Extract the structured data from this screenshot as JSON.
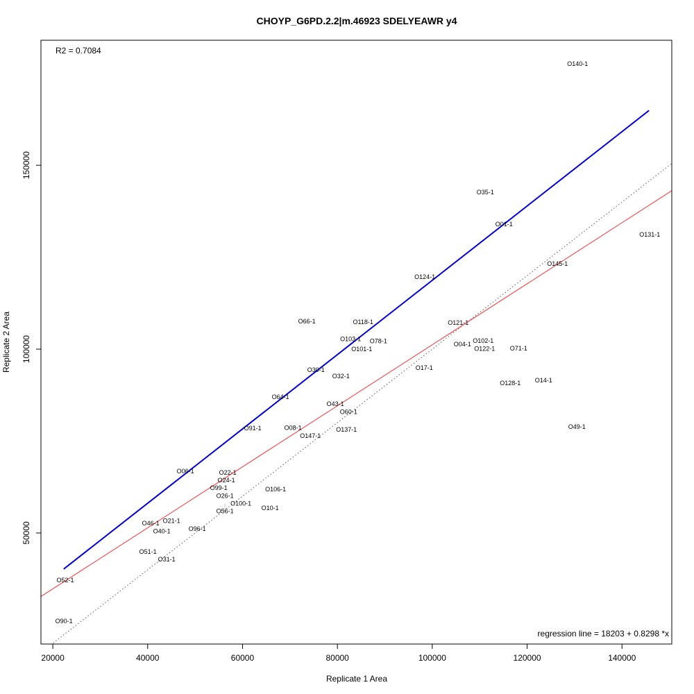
{
  "chart_data": {
    "type": "scatter",
    "title": "CHOYP_G6PD.2.2|m.46923 SDELYEAWR y4",
    "xlabel": "Replicate 1 Area",
    "ylabel": "Replicate 2 Area",
    "xlim": [
      17500,
      150500
    ],
    "ylim": [
      19800,
      184000
    ],
    "xticks": [
      20000,
      40000,
      60000,
      80000,
      100000,
      120000,
      140000
    ],
    "yticks": [
      50000,
      100000,
      150000
    ],
    "xtick_labels": [
      "20000",
      "40000",
      "60000",
      "80000",
      "100000",
      "120000",
      "140000"
    ],
    "ytick_labels": [
      "50000",
      "100000",
      "150000"
    ],
    "grid": false,
    "r2_label": "R2 = 0.7084",
    "regression_label": "regression line = 18203 + 0.8298 *x",
    "regression": {
      "intercept": 18203,
      "slope": 0.8298,
      "color": "#e85555"
    },
    "identity_line": {
      "intercept": 0,
      "slope": 1,
      "color": "#555555",
      "style": "dotted"
    },
    "blue_line": {
      "x": [
        22300,
        145700
      ],
      "y": [
        40200,
        164900
      ],
      "color": "#0000c8"
    },
    "points": [
      {
        "label": "O140-1",
        "x": 130640,
        "y": 177550
      },
      {
        "label": "O35-1",
        "x": 111180,
        "y": 142640
      },
      {
        "label": "O01-1",
        "x": 115130,
        "y": 133960
      },
      {
        "label": "O131-1",
        "x": 145860,
        "y": 131130
      },
      {
        "label": "O145-1",
        "x": 126400,
        "y": 123210
      },
      {
        "label": "O124-1",
        "x": 98440,
        "y": 119620
      },
      {
        "label": "O66-1",
        "x": 73560,
        "y": 107550
      },
      {
        "label": "O118-1",
        "x": 85420,
        "y": 107360
      },
      {
        "label": "O121-1",
        "x": 105470,
        "y": 107170
      },
      {
        "label": "O103-1",
        "x": 82780,
        "y": 102260
      },
      {
        "label": "O101-1",
        "x": 85130,
        "y": 101130
      },
      {
        "label": "O78-1",
        "x": 88640,
        "y": 101510
      },
      {
        "label": "O04-1",
        "x": 106350,
        "y": 101320
      },
      {
        "label": "O102-1",
        "x": 110740,
        "y": 101320
      },
      {
        "label": "O122-1",
        "x": 111030,
        "y": 101130
      },
      {
        "label": "O71-1",
        "x": 118200,
        "y": 100190
      },
      {
        "label": "O30-1",
        "x": 75470,
        "y": 94340
      },
      {
        "label": "O17-1",
        "x": 98300,
        "y": 94910
      },
      {
        "label": "O32-1",
        "x": 80740,
        "y": 92640
      },
      {
        "label": "O128-1",
        "x": 116450,
        "y": 90760
      },
      {
        "label": "O14-1",
        "x": 123470,
        "y": 91510
      },
      {
        "label": "O64-1",
        "x": 68000,
        "y": 86980
      },
      {
        "label": "O43-1",
        "x": 79560,
        "y": 84340
      },
      {
        "label": "O60-1",
        "x": 82350,
        "y": 83770
      },
      {
        "label": "O49-1",
        "x": 130490,
        "y": 78870
      },
      {
        "label": "O91-1",
        "x": 62150,
        "y": 78490
      },
      {
        "label": "O08-1",
        "x": 70640,
        "y": 77740
      },
      {
        "label": "O147-1",
        "x": 74300,
        "y": 77360
      },
      {
        "label": "O137-1",
        "x": 81910,
        "y": 78110
      },
      {
        "label": "O06-1",
        "x": 47950,
        "y": 66790
      },
      {
        "label": "O22-1",
        "x": 56880,
        "y": 64910
      },
      {
        "label": "O24-1",
        "x": 56590,
        "y": 64530
      },
      {
        "label": "O99-1",
        "x": 54980,
        "y": 62260
      },
      {
        "label": "O106-1",
        "x": 66980,
        "y": 61890
      },
      {
        "label": "O26-1",
        "x": 56290,
        "y": 59620
      },
      {
        "label": "O56-1",
        "x": 56290,
        "y": 57930
      },
      {
        "label": "O100-1",
        "x": 59660,
        "y": 57740
      },
      {
        "label": "O10-1",
        "x": 65810,
        "y": 56790
      },
      {
        "label": "O21-1",
        "x": 45030,
        "y": 52640
      },
      {
        "label": "O46-1",
        "x": 40640,
        "y": 52080
      },
      {
        "label": "O40-1",
        "x": 42980,
        "y": 51700
      },
      {
        "label": "O96-1",
        "x": 50440,
        "y": 51130
      },
      {
        "label": "O51-1",
        "x": 40050,
        "y": 44910
      },
      {
        "label": "O31-1",
        "x": 44000,
        "y": 42830
      },
      {
        "label": "O52-1",
        "x": 22630,
        "y": 37170
      },
      {
        "label": "O90-1",
        "x": 22340,
        "y": 26040
      }
    ]
  }
}
